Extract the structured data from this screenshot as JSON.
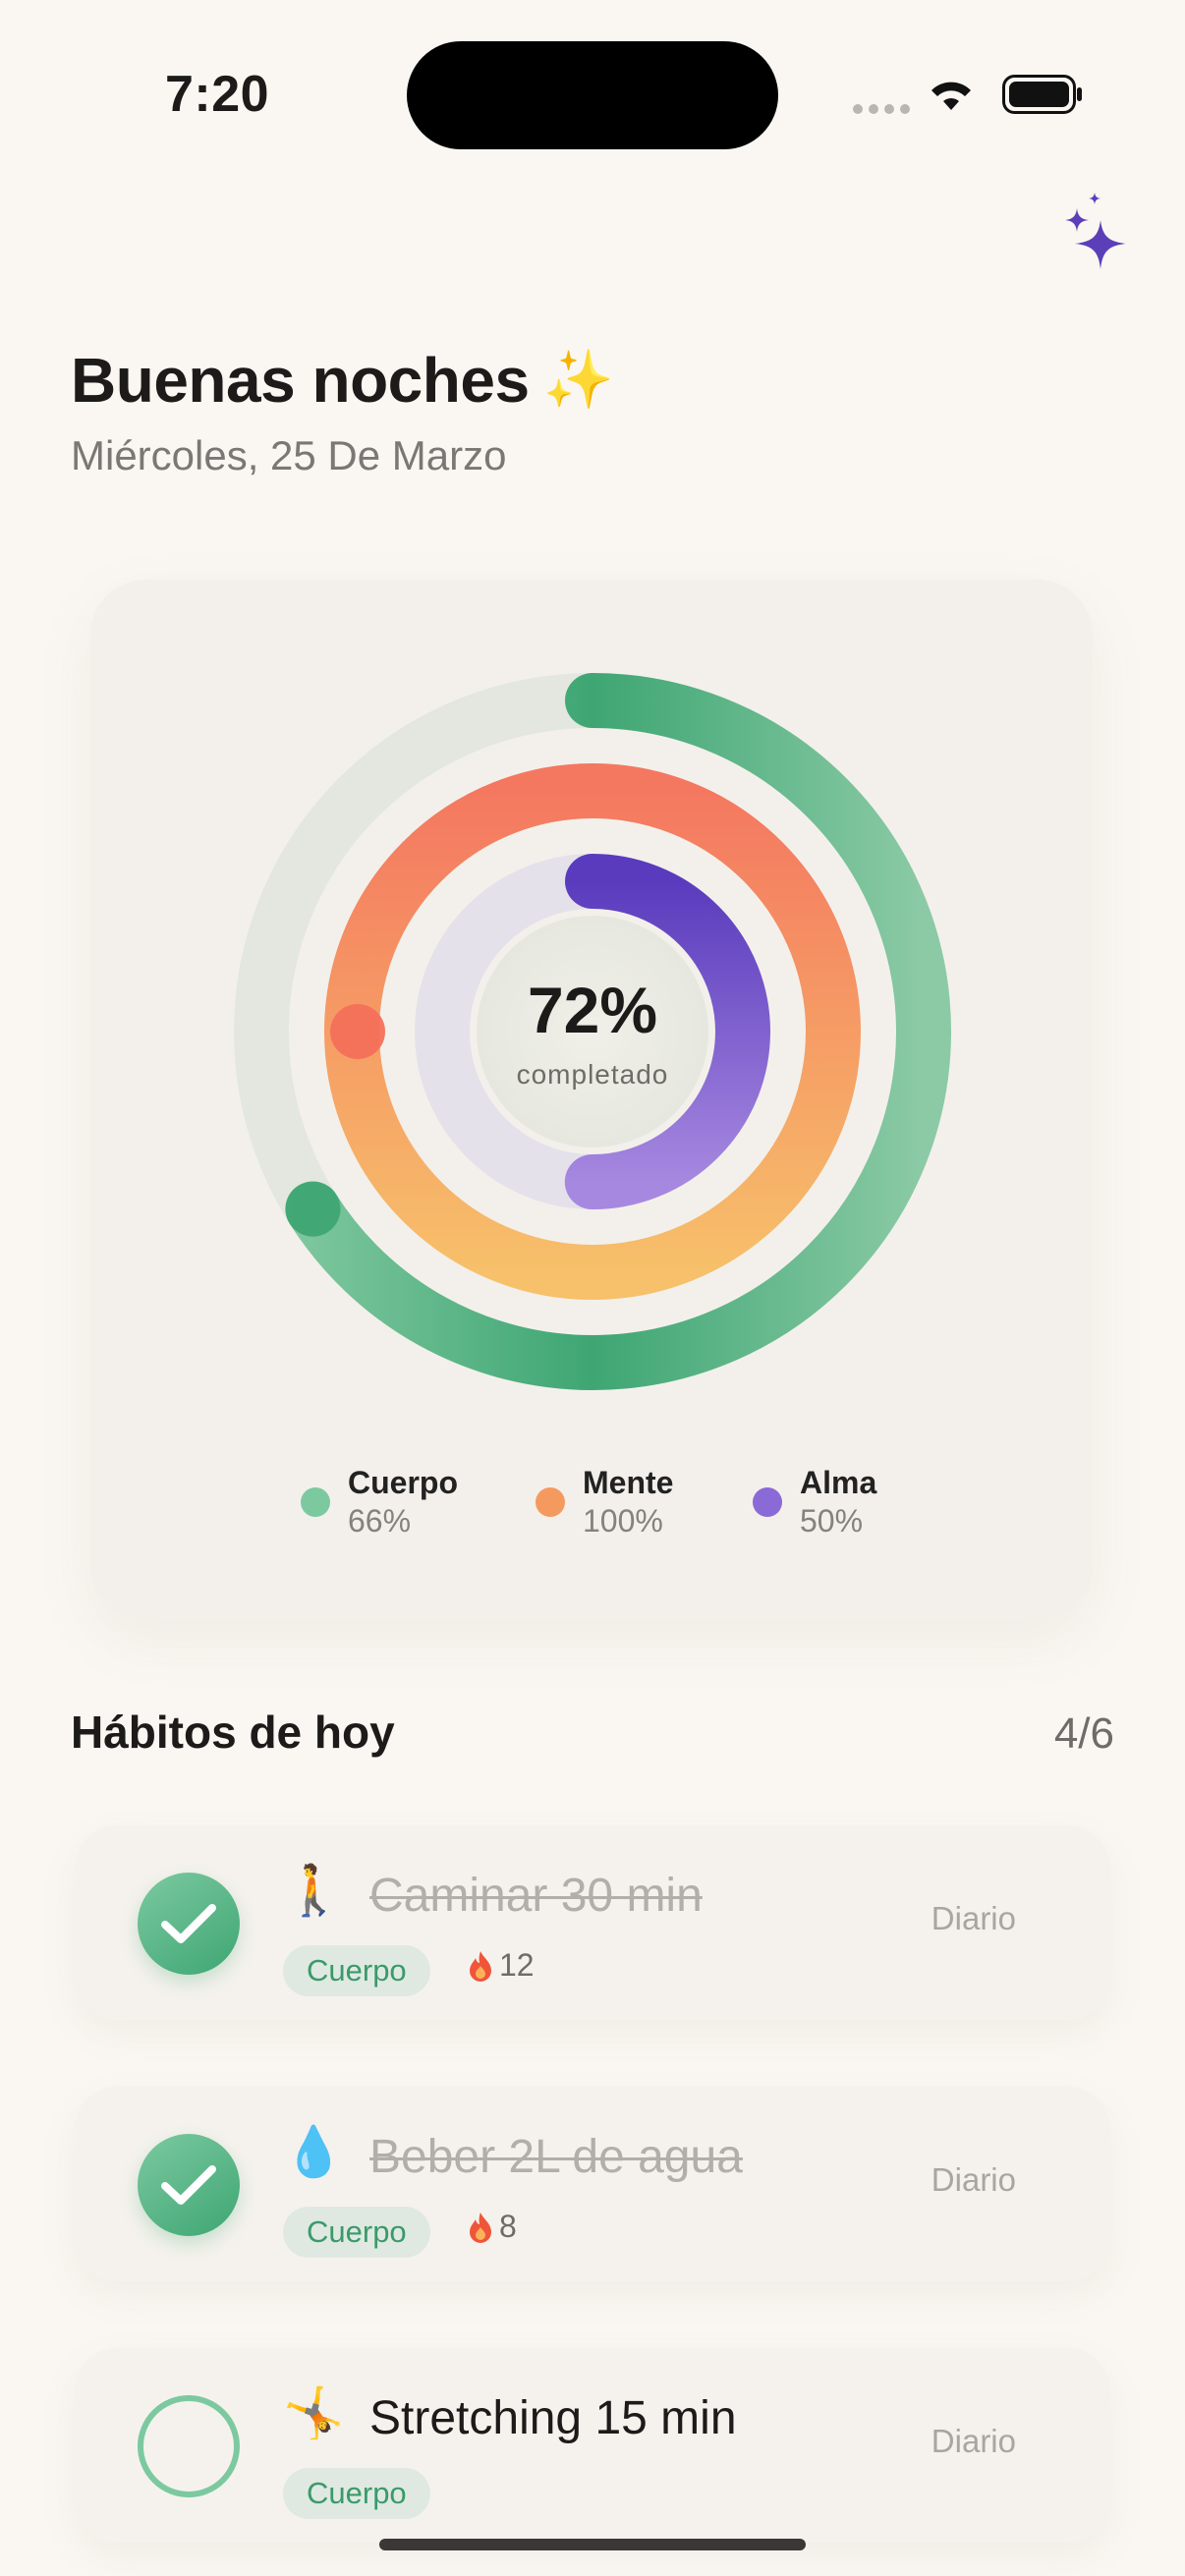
{
  "status_bar": {
    "time": "7:20"
  },
  "header": {
    "greeting": "Buenas noches",
    "greeting_emoji": "✨",
    "date": "Miércoles, 25 De Marzo",
    "sparkle_icon": "sparkles-icon",
    "accent_color": "#5b3fb8"
  },
  "progress": {
    "overall_percent": 72,
    "percent_text": "72%",
    "center_label": "completado",
    "rings": [
      {
        "name": "Cuerpo",
        "value": 0.66,
        "color": "#3ea673",
        "track": "#e3e7e0"
      },
      {
        "name": "Mente",
        "value": 1.0,
        "color": "#f5845f",
        "track": "#f1e7dc"
      },
      {
        "name": "Alma",
        "value": 0.5,
        "color": "#6a47c6",
        "track": "#e4e1ea"
      }
    ],
    "legend": [
      {
        "name": "Cuerpo",
        "value": "66%",
        "color": "#7cc9a0"
      },
      {
        "name": "Mente",
        "value": "100%",
        "color": "#f59a5f"
      },
      {
        "name": "Alma",
        "value": "50%",
        "color": "#8a6ad6"
      }
    ]
  },
  "habits": {
    "title": "Hábitos de hoy",
    "count": "4/6",
    "items": [
      {
        "emoji": "🚶",
        "name": "Caminar 30 min",
        "tag": "Cuerpo",
        "streak": "12",
        "frequency": "Diario",
        "done": true
      },
      {
        "emoji": "💧",
        "name": "Beber 2L de agua",
        "tag": "Cuerpo",
        "streak": "8",
        "frequency": "Diario",
        "done": true
      },
      {
        "emoji": "🤸",
        "name": "Stretching 15 min",
        "tag": "Cuerpo",
        "streak": "",
        "frequency": "Diario",
        "done": false
      }
    ]
  }
}
